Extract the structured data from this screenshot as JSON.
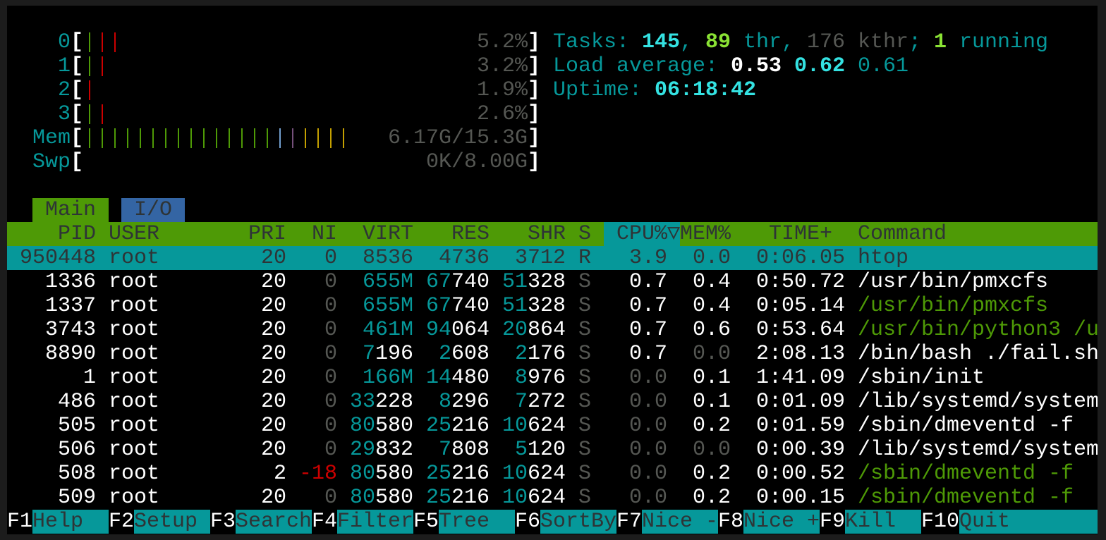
{
  "colors": {
    "teal": "#06989a",
    "bright_teal": "#34e2e2",
    "green": "#4e9a06",
    "bright_green": "#8ae234",
    "red": "#cc0000",
    "gray": "#555753",
    "blue": "#3465a4",
    "purple": "#75507b",
    "yellow": "#c4a000",
    "light_blue": "#729fcf"
  },
  "meters": [
    {
      "label": "0",
      "value": "5.2%",
      "bars": [
        "green",
        "red",
        "red"
      ]
    },
    {
      "label": "1",
      "value": "3.2%",
      "bars": [
        "green",
        "red"
      ]
    },
    {
      "label": "2",
      "value": "1.9%",
      "bars": [
        "red"
      ]
    },
    {
      "label": "3",
      "value": "2.6%",
      "bars": [
        "green",
        "red"
      ]
    },
    {
      "label": "Mem",
      "value": "6.17G/15.3G",
      "bars": [
        "green",
        "green",
        "green",
        "green",
        "green",
        "green",
        "green",
        "green",
        "green",
        "green",
        "green",
        "green",
        "green",
        "green",
        "green",
        "light_blue",
        "purple",
        "yellow",
        "yellow",
        "yellow",
        "yellow"
      ]
    },
    {
      "label": "Swp",
      "value": "0K/8.00G",
      "bars": []
    }
  ],
  "summary": {
    "tasks_label": "Tasks: ",
    "tasks": "145",
    "sep1": ", ",
    "threads": "89",
    "thr_label": " thr, ",
    "kthreads": "176 kthr",
    "sep2": "; ",
    "running": "1",
    "running_label": " running",
    "load_label": "Load average: ",
    "load1": "0.53",
    "load5": "0.62",
    "load15": "0.61",
    "uptime_label": "Uptime: ",
    "uptime": "06:18:42"
  },
  "tabs": [
    {
      "label": "Main",
      "active": true
    },
    {
      "label": "I/O",
      "active": false
    }
  ],
  "columns": {
    "pid": "PID",
    "user": "USER",
    "pri": "PRI",
    "ni": "NI",
    "virt": "VIRT",
    "res": "RES",
    "shr": "SHR",
    "s": "S",
    "cpu": "CPU%▽",
    "mem": "MEM%",
    "time": "TIME+",
    "command": "Command"
  },
  "processes": [
    {
      "pid": "950448",
      "user": "root",
      "pri": "20",
      "ni": "0",
      "virt": "8536",
      "res": "4736",
      "shr": "3712",
      "s": "R",
      "cpu": "3.9",
      "mem": "0.0",
      "time": "0:06.05",
      "command": "htop",
      "selected": true,
      "thread": false
    },
    {
      "pid": "1336",
      "user": "root",
      "pri": "20",
      "ni": "0",
      "virt": "655M",
      "res": "67740",
      "shr": "51328",
      "s": "S",
      "cpu": "0.7",
      "mem": "0.4",
      "time": "0:50.72",
      "command": "/usr/bin/pmxcfs",
      "thread": false
    },
    {
      "pid": "1337",
      "user": "root",
      "pri": "20",
      "ni": "0",
      "virt": "655M",
      "res": "67740",
      "shr": "51328",
      "s": "S",
      "cpu": "0.7",
      "mem": "0.4",
      "time": "0:05.14",
      "command": "/usr/bin/pmxcfs",
      "thread": true
    },
    {
      "pid": "3743",
      "user": "root",
      "pri": "20",
      "ni": "0",
      "virt": "461M",
      "res": "94064",
      "shr": "20864",
      "s": "S",
      "cpu": "0.7",
      "mem": "0.6",
      "time": "0:53.64",
      "command": "/usr/bin/python3 /u",
      "thread": true
    },
    {
      "pid": "8890",
      "user": "root",
      "pri": "20",
      "ni": "0",
      "virt": "7196",
      "res": "2608",
      "shr": "2176",
      "s": "S",
      "cpu": "0.7",
      "mem": "0.0",
      "time": "2:08.13",
      "command": "/bin/bash ./fail.sh",
      "thread": false
    },
    {
      "pid": "1",
      "user": "root",
      "pri": "20",
      "ni": "0",
      "virt": "166M",
      "res": "14480",
      "shr": "8976",
      "s": "S",
      "cpu": "0.0",
      "mem": "0.1",
      "time": "1:41.09",
      "command": "/sbin/init",
      "thread": false
    },
    {
      "pid": "486",
      "user": "root",
      "pri": "20",
      "ni": "0",
      "virt": "33228",
      "res": "8296",
      "shr": "7272",
      "s": "S",
      "cpu": "0.0",
      "mem": "0.1",
      "time": "0:01.09",
      "command": "/lib/systemd/system",
      "thread": false
    },
    {
      "pid": "505",
      "user": "root",
      "pri": "20",
      "ni": "0",
      "virt": "80580",
      "res": "25216",
      "shr": "10624",
      "s": "S",
      "cpu": "0.0",
      "mem": "0.2",
      "time": "0:01.59",
      "command": "/sbin/dmeventd -f",
      "thread": false
    },
    {
      "pid": "506",
      "user": "root",
      "pri": "20",
      "ni": "0",
      "virt": "29832",
      "res": "7808",
      "shr": "5120",
      "s": "S",
      "cpu": "0.0",
      "mem": "0.0",
      "time": "0:00.39",
      "command": "/lib/systemd/system",
      "thread": false
    },
    {
      "pid": "508",
      "user": "root",
      "pri": "2",
      "ni": "-18",
      "virt": "80580",
      "res": "25216",
      "shr": "10624",
      "s": "S",
      "cpu": "0.0",
      "mem": "0.2",
      "time": "0:00.52",
      "command": "/sbin/dmeventd -f",
      "thread": true
    },
    {
      "pid": "509",
      "user": "root",
      "pri": "20",
      "ni": "0",
      "virt": "80580",
      "res": "25216",
      "shr": "10624",
      "s": "S",
      "cpu": "0.0",
      "mem": "0.2",
      "time": "0:00.15",
      "command": "/sbin/dmeventd -f",
      "thread": true
    }
  ],
  "footer": [
    {
      "key": "F1",
      "label": "Help"
    },
    {
      "key": "F2",
      "label": "Setup"
    },
    {
      "key": "F3",
      "label": "Search"
    },
    {
      "key": "F4",
      "label": "Filter"
    },
    {
      "key": "F5",
      "label": "Tree"
    },
    {
      "key": "F6",
      "label": "SortBy"
    },
    {
      "key": "F7",
      "label": "Nice -"
    },
    {
      "key": "F8",
      "label": "Nice +"
    },
    {
      "key": "F9",
      "label": "Kill"
    },
    {
      "key": "F10",
      "label": "Quit"
    }
  ]
}
